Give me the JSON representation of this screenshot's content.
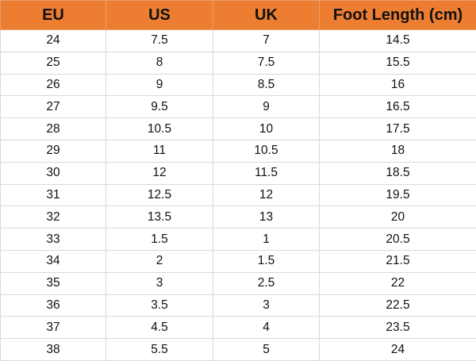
{
  "table": {
    "header_color": "#ED7D31",
    "columns": [
      "EU",
      "US",
      "UK",
      "Foot Length (cm)"
    ],
    "rows": [
      [
        "24",
        "7.5",
        "7",
        "14.5"
      ],
      [
        "25",
        "8",
        "7.5",
        "15.5"
      ],
      [
        "26",
        "9",
        "8.5",
        "16"
      ],
      [
        "27",
        "9.5",
        "9",
        "16.5"
      ],
      [
        "28",
        "10.5",
        "10",
        "17.5"
      ],
      [
        "29",
        "11",
        "10.5",
        "18"
      ],
      [
        "30",
        "12",
        "11.5",
        "18.5"
      ],
      [
        "31",
        "12.5",
        "12",
        "19.5"
      ],
      [
        "32",
        "13.5",
        "13",
        "20"
      ],
      [
        "33",
        "1.5",
        "1",
        "20.5"
      ],
      [
        "34",
        "2",
        "1.5",
        "21.5"
      ],
      [
        "35",
        "3",
        "2.5",
        "22"
      ],
      [
        "36",
        "3.5",
        "3",
        "22.5"
      ],
      [
        "37",
        "4.5",
        "4",
        "23.5"
      ],
      [
        "38",
        "5.5",
        "5",
        "24"
      ]
    ]
  }
}
